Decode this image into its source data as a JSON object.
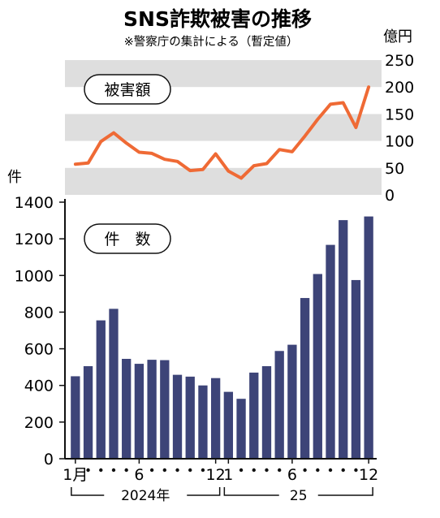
{
  "title": "SNS詐欺被害の推移",
  "subtitle": "※警察庁の集計による（暫定値）",
  "chart_data": [
    {
      "type": "line",
      "label": "被害額",
      "unit": "億円",
      "yticks": [
        "250",
        "200",
        "150",
        "100",
        "50",
        "0"
      ],
      "ylim": [
        0,
        250
      ],
      "grid": "alternating gray bands",
      "color": "#ef6a35",
      "values": [
        57,
        59,
        99,
        115,
        96,
        79,
        77,
        66,
        62,
        45,
        47,
        76,
        44,
        31,
        54,
        58,
        84,
        80,
        109,
        140,
        168,
        171,
        125,
        200
      ]
    },
    {
      "type": "bar",
      "label": "件　数",
      "unit": "件",
      "yticks": [
        "1400",
        "1200",
        "1000",
        "800",
        "600",
        "400",
        "200",
        "0"
      ],
      "ylim": [
        0,
        1400
      ],
      "color": "#3d4478",
      "values": [
        450,
        505,
        755,
        818,
        545,
        518,
        540,
        538,
        458,
        448,
        400,
        440,
        365,
        327,
        470,
        505,
        588,
        622,
        877,
        1008,
        1167,
        1302,
        975,
        1322
      ]
    }
  ],
  "x_axis": {
    "tick_labels": [
      {
        "index": 0,
        "text": "1月"
      },
      {
        "index": 5,
        "text": "6"
      },
      {
        "index": 11,
        "text": "12"
      },
      {
        "index": 12,
        "text": "1"
      },
      {
        "index": 17,
        "text": "6"
      },
      {
        "index": 23,
        "text": "12"
      }
    ],
    "years": [
      {
        "text": "2024年",
        "from": 0,
        "to": 11
      },
      {
        "text": "25",
        "from": 12,
        "to": 23
      }
    ]
  },
  "colors": {
    "bar": "#3d4478",
    "line": "#ef6a35",
    "band": "#dedede",
    "axis": "#111111"
  }
}
